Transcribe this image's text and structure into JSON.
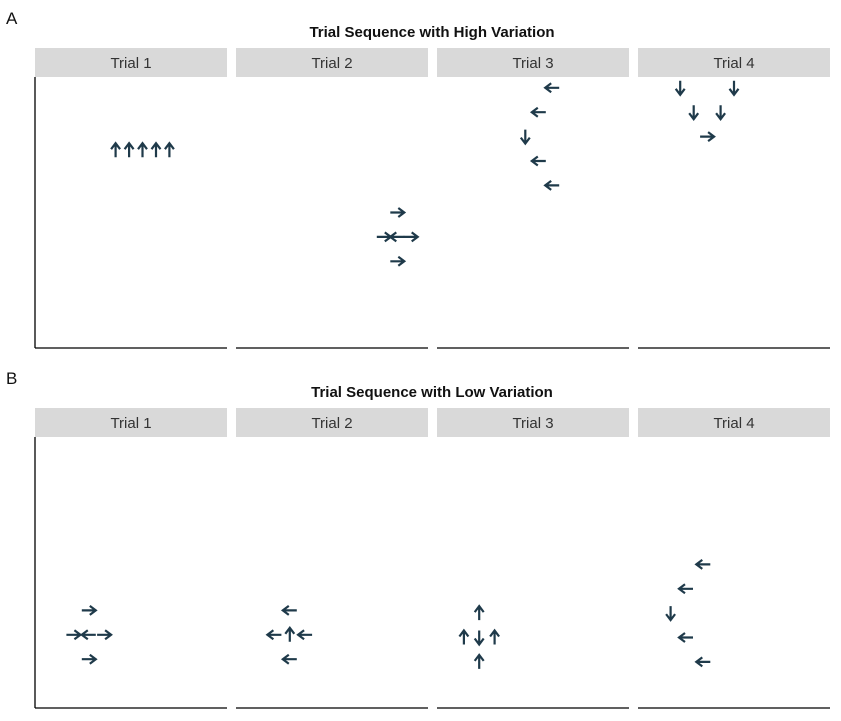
{
  "colors": {
    "arrow": "#1f3a4a",
    "strip_bg": "#d9d9d9",
    "axis": "#000000",
    "background": "#ffffff"
  },
  "chart_data": [
    {
      "type": "scatter",
      "panel_label": "A",
      "title": "Trial Sequence with High Variation",
      "x_range": [
        0,
        10
      ],
      "y_range": [
        0,
        10
      ],
      "facets": [
        {
          "label": "Trial 1",
          "points": [
            {
              "x": 4.2,
              "y": 7.3,
              "dir": "up"
            },
            {
              "x": 4.9,
              "y": 7.3,
              "dir": "up"
            },
            {
              "x": 5.6,
              "y": 7.3,
              "dir": "up"
            },
            {
              "x": 6.3,
              "y": 7.3,
              "dir": "up"
            },
            {
              "x": 7.0,
              "y": 7.3,
              "dir": "up"
            }
          ]
        },
        {
          "label": "Trial 2",
          "points": [
            {
              "x": 8.4,
              "y": 5.0,
              "dir": "right"
            },
            {
              "x": 7.7,
              "y": 4.1,
              "dir": "right"
            },
            {
              "x": 8.4,
              "y": 4.1,
              "dir": "left"
            },
            {
              "x": 9.1,
              "y": 4.1,
              "dir": "right"
            },
            {
              "x": 8.4,
              "y": 3.2,
              "dir": "right"
            }
          ]
        },
        {
          "label": "Trial 3",
          "points": [
            {
              "x": 6.0,
              "y": 9.6,
              "dir": "left"
            },
            {
              "x": 5.3,
              "y": 8.7,
              "dir": "left"
            },
            {
              "x": 4.6,
              "y": 7.8,
              "dir": "down"
            },
            {
              "x": 5.3,
              "y": 6.9,
              "dir": "left"
            },
            {
              "x": 6.0,
              "y": 6.0,
              "dir": "left"
            }
          ]
        },
        {
          "label": "Trial 4",
          "points": [
            {
              "x": 2.2,
              "y": 9.6,
              "dir": "down"
            },
            {
              "x": 5.0,
              "y": 9.6,
              "dir": "down"
            },
            {
              "x": 2.9,
              "y": 8.7,
              "dir": "down"
            },
            {
              "x": 4.3,
              "y": 8.7,
              "dir": "down"
            },
            {
              "x": 3.6,
              "y": 7.8,
              "dir": "right"
            }
          ]
        }
      ]
    },
    {
      "type": "scatter",
      "panel_label": "B",
      "title": "Trial Sequence with Low Variation",
      "x_range": [
        0,
        10
      ],
      "y_range": [
        0,
        10
      ],
      "facets": [
        {
          "label": "Trial 1",
          "points": [
            {
              "x": 2.8,
              "y": 3.6,
              "dir": "right"
            },
            {
              "x": 2.0,
              "y": 2.7,
              "dir": "right"
            },
            {
              "x": 2.8,
              "y": 2.7,
              "dir": "left"
            },
            {
              "x": 3.6,
              "y": 2.7,
              "dir": "right"
            },
            {
              "x": 2.8,
              "y": 1.8,
              "dir": "right"
            }
          ]
        },
        {
          "label": "Trial 2",
          "points": [
            {
              "x": 2.8,
              "y": 3.6,
              "dir": "left"
            },
            {
              "x": 2.0,
              "y": 2.7,
              "dir": "left"
            },
            {
              "x": 2.8,
              "y": 2.7,
              "dir": "up"
            },
            {
              "x": 3.6,
              "y": 2.7,
              "dir": "left"
            },
            {
              "x": 2.8,
              "y": 1.8,
              "dir": "left"
            }
          ]
        },
        {
          "label": "Trial 3",
          "points": [
            {
              "x": 2.2,
              "y": 3.5,
              "dir": "up"
            },
            {
              "x": 1.4,
              "y": 2.6,
              "dir": "up"
            },
            {
              "x": 2.2,
              "y": 2.6,
              "dir": "down"
            },
            {
              "x": 3.0,
              "y": 2.6,
              "dir": "up"
            },
            {
              "x": 2.2,
              "y": 1.7,
              "dir": "up"
            }
          ]
        },
        {
          "label": "Trial 4",
          "points": [
            {
              "x": 3.4,
              "y": 5.3,
              "dir": "left"
            },
            {
              "x": 2.5,
              "y": 4.4,
              "dir": "left"
            },
            {
              "x": 1.7,
              "y": 3.5,
              "dir": "down"
            },
            {
              "x": 2.5,
              "y": 2.6,
              "dir": "left"
            },
            {
              "x": 3.4,
              "y": 1.7,
              "dir": "left"
            }
          ]
        }
      ]
    }
  ]
}
